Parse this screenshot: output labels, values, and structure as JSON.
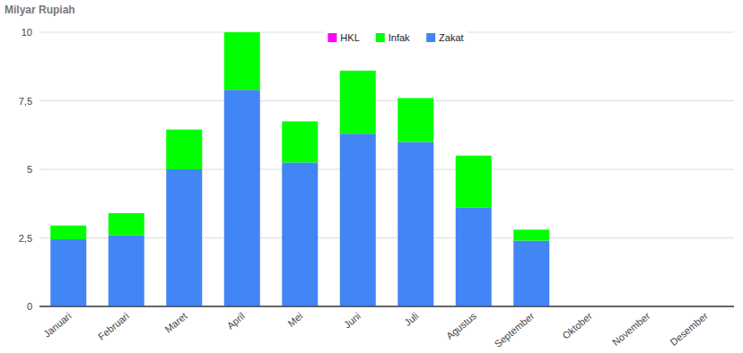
{
  "chart_data": {
    "type": "bar",
    "stacked": true,
    "title": "Milyar Rupiah",
    "categories": [
      "Januari",
      "Februari",
      "Maret",
      "April",
      "Mei",
      "Juni",
      "Juli",
      "Agustus",
      "September",
      "Oktober",
      "November",
      "Desember"
    ],
    "series": [
      {
        "name": "Zakat",
        "color": "#4285f4",
        "values": [
          2.45,
          2.6,
          5.0,
          7.9,
          5.25,
          6.3,
          6.0,
          3.6,
          2.4,
          null,
          null,
          null
        ]
      },
      {
        "name": "Infak",
        "color": "#00ff00",
        "values": [
          0.5,
          0.8,
          1.45,
          2.1,
          1.5,
          2.3,
          1.6,
          1.9,
          0.4,
          null,
          null,
          null
        ]
      },
      {
        "name": "HKL",
        "color": "#ff00ff",
        "values": [
          0,
          0,
          0,
          0,
          0,
          0,
          0,
          0,
          0,
          null,
          null,
          null
        ]
      }
    ],
    "ylim": [
      0,
      10
    ],
    "yticks": [
      0,
      {
        "value": 2.5,
        "label": "2,5"
      },
      5,
      {
        "value": 7.5,
        "label": "7,5"
      },
      10
    ],
    "grid": true,
    "legend": "top"
  }
}
